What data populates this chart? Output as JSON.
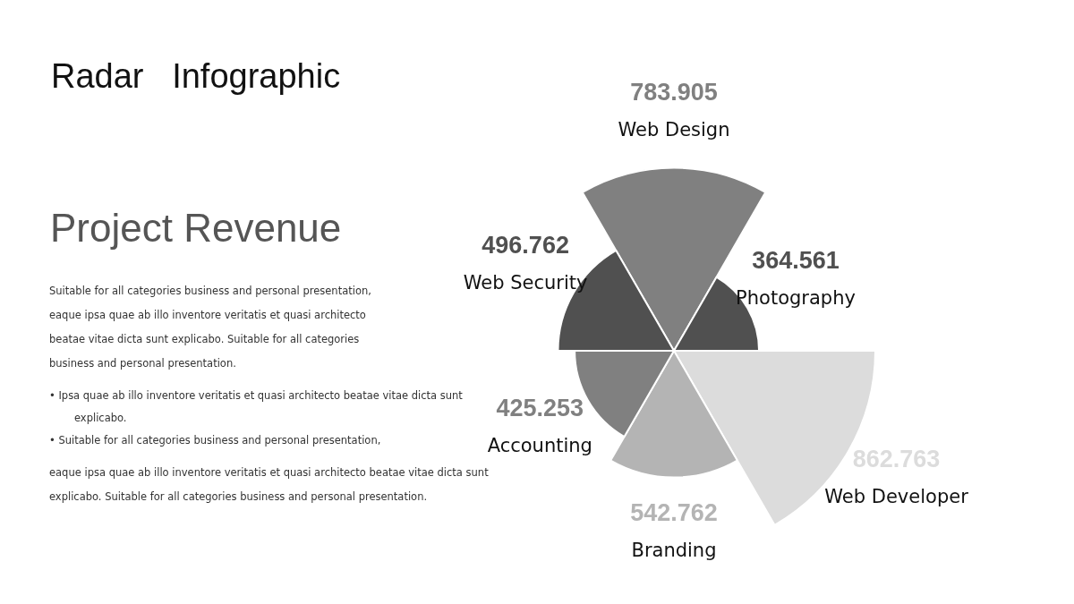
{
  "chart_data": {
    "type": "other",
    "title": "Radar   Infographic",
    "subtitle": "Project Revenue",
    "categories": [
      "Web Design",
      "Photography",
      "Web Developer",
      "Branding",
      "Accounting",
      "Web Security"
    ],
    "values": [
      783.905,
      364.561,
      862.763,
      542.762,
      425.253,
      496.762
    ],
    "colors": [
      "#808080",
      "#505050",
      "#dcdcdc",
      "#b4b4b4",
      "#808080",
      "#505050"
    ],
    "data_labels": true,
    "legend": false,
    "annotations": [
      "Suitable for all categories business and personal presentation, eaque ipsa quae ab illo inventore veritatis et quasi architecto beatae vitae dicta sunt explicabo. Suitable for all categories business and personal presentation.",
      "• Ipsa quae ab illo inventore veritatis et quasi architecto beatae vitae dicta sunt explicabo.",
      "• Suitable for all categories business and personal presentation,",
      "eaque ipsa quae ab illo inventore veritatis et quasi architecto beatae vitae dicta sunt explicabo. Suitable for all categories business and personal presentation."
    ]
  }
}
